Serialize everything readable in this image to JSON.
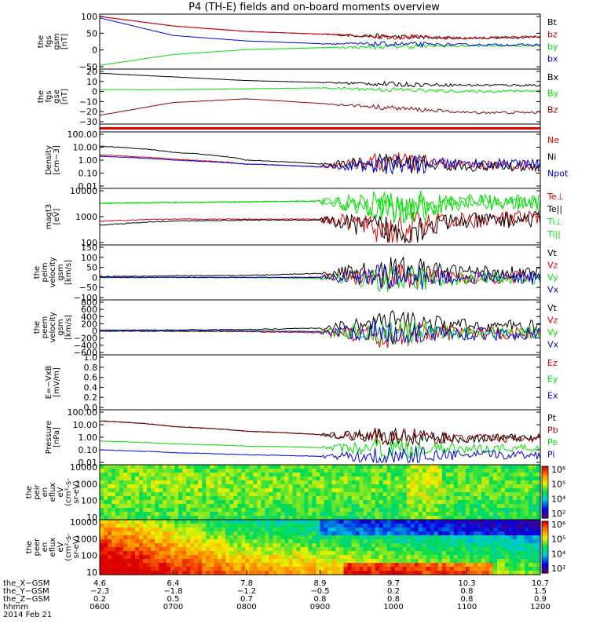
{
  "title": "P4 (TH-E) fields and on-board moments overview",
  "colors": {
    "black": "#000000",
    "red": "#e00000",
    "darkred": "#8b0000",
    "blue": "#0000e0",
    "green": "#00e000"
  },
  "panels": [
    {
      "id": "fgs-gsm",
      "ylabel": [
        "the",
        "fgs",
        "gsm",
        "[nT]"
      ],
      "yticks": [
        "100",
        "50",
        "0",
        "−50"
      ],
      "legend": [
        {
          "text": "Bt",
          "color": "#000000"
        },
        {
          "text": "bz",
          "color": "#e00000"
        },
        {
          "text": "by",
          "color": "#00e000"
        },
        {
          "text": "bx",
          "color": "#0000e0"
        }
      ]
    },
    {
      "id": "fgs-gse",
      "ylabel": [
        "the",
        "fgs",
        "gse",
        "[nT]"
      ],
      "yticks": [
        "20",
        "10",
        "0",
        "−10",
        "−20",
        "−30"
      ],
      "legend": [
        {
          "text": "Bx",
          "color": "#000000"
        },
        {
          "text": "By",
          "color": "#00e000"
        },
        {
          "text": "Bz",
          "color": "#8b0000"
        }
      ]
    },
    {
      "id": "density",
      "ylabel": [
        "Density",
        "[cm−3]"
      ],
      "yticks": [
        "100.00",
        "10.00",
        "1.00",
        "0.10",
        "0.01"
      ],
      "legend": [
        {
          "text": "Ne",
          "color": "#e00000"
        },
        {
          "text": "Ni",
          "color": "#000000"
        },
        {
          "text": "Npot",
          "color": "#0000e0"
        }
      ]
    },
    {
      "id": "temperature",
      "ylabel": [
        "magt3",
        "[eV]"
      ],
      "yticks": [
        "10000",
        "1000",
        "100"
      ],
      "legend": [
        {
          "text": "Te⊥",
          "color": "#e00000"
        },
        {
          "text": "Te||",
          "color": "#000000"
        },
        {
          "text": "Ti⊥",
          "color": "#00e000"
        },
        {
          "text": "Ti||",
          "color": "#00e000"
        }
      ]
    },
    {
      "id": "peim-velocity",
      "ylabel": [
        "the",
        "peim",
        "velocity",
        "gsm",
        "[km/s]"
      ],
      "yticks": [
        "150",
        "100",
        "50",
        "0",
        "−50",
        "−100"
      ],
      "legend": [
        {
          "text": "Vt",
          "color": "#000000"
        },
        {
          "text": "Vz",
          "color": "#e00000"
        },
        {
          "text": "Vy",
          "color": "#00e000"
        },
        {
          "text": "Vx",
          "color": "#0000e0"
        }
      ]
    },
    {
      "id": "peem-velocity",
      "ylabel": [
        "the",
        "peem",
        "velocity",
        "gsm",
        "[km/s]"
      ],
      "yticks": [
        "800",
        "600",
        "400",
        "200",
        "0",
        "−200",
        "−400",
        "−600"
      ],
      "legend": [
        {
          "text": "Vt",
          "color": "#000000"
        },
        {
          "text": "Vz",
          "color": "#e00000"
        },
        {
          "text": "Vy",
          "color": "#00e000"
        },
        {
          "text": "Vx",
          "color": "#0000e0"
        }
      ]
    },
    {
      "id": "efield",
      "ylabel": [
        "E=−VxB",
        "[mV/m]"
      ],
      "yticks": [
        "1.0",
        "0.8",
        "0.6",
        "0.4",
        "0.2",
        "0.0"
      ],
      "legend": [
        {
          "text": "Ez",
          "color": "#e00000"
        },
        {
          "text": "Ey",
          "color": "#00e000"
        },
        {
          "text": "Ex",
          "color": "#0000e0"
        }
      ]
    },
    {
      "id": "pressure",
      "ylabel": [
        "Pressure",
        "[nPa]"
      ],
      "yticks": [
        "100.00",
        "10.00",
        "1.00",
        "0.10",
        "0.01"
      ],
      "legend": [
        {
          "text": "Pt",
          "color": "#000000"
        },
        {
          "text": "Pb",
          "color": "#8b0000"
        },
        {
          "text": "Pe",
          "color": "#00e000"
        },
        {
          "text": "Pi",
          "color": "#0000e0"
        }
      ]
    },
    {
      "id": "peir-spectrogram",
      "ylabel": [
        "the",
        "peir",
        "en",
        "eflux",
        "eV",
        "(cm²-s-",
        "sr-eV)"
      ],
      "yticks": [
        "10000",
        "1000",
        "100",
        "10"
      ],
      "legend": []
    },
    {
      "id": "peer-spectrogram",
      "ylabel": [
        "the",
        "peer",
        "en",
        "eflux",
        "eV",
        "(cm²-s-",
        "sr-eV)"
      ],
      "yticks": [
        "10000",
        "1000",
        "100",
        "10"
      ],
      "legend": []
    }
  ],
  "colorbar": {
    "labels_top": [
      "10⁶",
      "10⁵",
      "10⁴",
      "10²"
    ],
    "labels_bottom": [
      "10⁶",
      "10⁵",
      "10⁴",
      "10²"
    ],
    "exponents": [
      6,
      5,
      4,
      2
    ]
  },
  "xaxis": {
    "rows": [
      {
        "label": "the_X−GSM",
        "values": [
          "4.6",
          "6.4",
          "7.8",
          "8.9",
          "9.7",
          "10.3",
          "10.7"
        ]
      },
      {
        "label": "the_Y−GSM",
        "values": [
          "−2.3",
          "−1.8",
          "−1.2",
          "−0.5",
          "0.2",
          "0.8",
          "1.5"
        ]
      },
      {
        "label": "the_Z−GSM",
        "values": [
          "0.2",
          "0.5",
          "0.7",
          "0.8",
          "0.8",
          "0.8",
          "0.9"
        ]
      },
      {
        "label": "hhmm",
        "values": [
          "0600",
          "0700",
          "0800",
          "0900",
          "1000",
          "1100",
          "1200"
        ]
      }
    ],
    "date": "2014 Feb 21"
  },
  "chart_data": {
    "type": "line",
    "title": "P4 (TH-E) fields and on-board moments overview",
    "time_range_hhmm": [
      "0600",
      "1200"
    ],
    "panels": [
      {
        "name": "fgs gsm",
        "unit": "nT",
        "ylim": [
          -75,
          110
        ],
        "series": [
          {
            "name": "Bt",
            "values": [
              110,
              75,
              55,
              45,
              35,
              30,
              35
            ]
          },
          {
            "name": "bz",
            "values": [
              110,
              75,
              55,
              45,
              35,
              30,
              35
            ]
          },
          {
            "name": "by",
            "values": [
              -70,
              -30,
              -12,
              -5,
              0,
              2,
              3
            ]
          },
          {
            "name": "bx",
            "values": [
              105,
              40,
              20,
              10,
              8,
              6,
              5
            ]
          }
        ]
      },
      {
        "name": "fgs gse",
        "unit": "nT",
        "ylim": [
          -35,
          20
        ],
        "series": [
          {
            "name": "Bx",
            "values": [
              18,
              14,
              10,
              8,
              6,
              5,
              5
            ]
          },
          {
            "name": "By",
            "values": [
              0,
              0,
              1,
              2,
              0,
              -2,
              -1
            ]
          },
          {
            "name": "Bz",
            "values": [
              -28,
              -14,
              -10,
              -15,
              -20,
              -25,
              -25
            ]
          }
        ]
      },
      {
        "name": "Density",
        "unit": "cm-3",
        "scale": "log",
        "ylim": [
          0.01,
          100
        ],
        "series": [
          {
            "name": "Ne",
            "values": [
              2.5,
              1.2,
              0.5,
              0.3,
              0.8,
              0.4,
              0.4
            ]
          },
          {
            "name": "Ni",
            "values": [
              12,
              4,
              1.0,
              0.5,
              0.6,
              0.3,
              0.3
            ]
          },
          {
            "name": "Npot",
            "values": [
              2,
              1,
              0.5,
              0.3,
              0.4,
              0.6,
              0.5
            ]
          }
        ]
      },
      {
        "name": "magt3",
        "unit": "eV",
        "scale": "log",
        "ylim": [
          50,
          10000
        ],
        "series": [
          {
            "name": "Te⊥",
            "values": [
              450,
              550,
              550,
              550,
              150,
              500,
              600
            ]
          },
          {
            "name": "Te||",
            "values": [
              300,
              450,
              500,
              500,
              130,
              450,
              550
            ]
          },
          {
            "name": "Ti⊥",
            "values": [
              2800,
              3000,
              3200,
              3500,
              1500,
              3000,
              3000
            ]
          },
          {
            "name": "Ti||",
            "values": [
              2800,
              3000,
              3200,
              3500,
              1500,
              3000,
              3000
            ]
          }
        ]
      },
      {
        "name": "peim velocity gsm",
        "unit": "km/s",
        "ylim": [
          -100,
          150
        ],
        "series": [
          {
            "name": "Vt",
            "values": [
              5,
              8,
              10,
              20,
              40,
              30,
              25
            ]
          },
          {
            "name": "Vz",
            "values": [
              0,
              0,
              0,
              0,
              5,
              0,
              0
            ]
          },
          {
            "name": "Vy",
            "values": [
              0,
              0,
              0,
              -5,
              -10,
              -5,
              -5
            ]
          },
          {
            "name": "Vx",
            "values": [
              0,
              0,
              0,
              0,
              0,
              0,
              0
            ]
          }
        ]
      },
      {
        "name": "peem velocity gsm",
        "unit": "km/s",
        "ylim": [
          -600,
          800
        ],
        "series": [
          {
            "name": "Vt",
            "values": [
              20,
              30,
              40,
              80,
              250,
              150,
              120
            ]
          },
          {
            "name": "Vz",
            "values": [
              -10,
              -10,
              -20,
              -50,
              -120,
              -60,
              -60
            ]
          },
          {
            "name": "Vy",
            "values": [
              0,
              0,
              0,
              -20,
              -50,
              -40,
              -40
            ]
          },
          {
            "name": "Vx",
            "values": [
              0,
              0,
              0,
              -20,
              -30,
              -80,
              -80
            ]
          }
        ]
      },
      {
        "name": "E=-VxB",
        "unit": "mV/m",
        "ylim": [
          0,
          1
        ],
        "series": []
      },
      {
        "name": "Pressure",
        "unit": "nPa",
        "scale": "log",
        "ylim": [
          0.01,
          100
        ],
        "series": [
          {
            "name": "Pt",
            "values": [
              20,
              7,
              3,
              1.6,
              1.0,
              0.8,
              0.9
            ]
          },
          {
            "name": "Pb",
            "values": [
              20,
              7,
              3,
              1.6,
              1.0,
              0.8,
              0.9
            ]
          },
          {
            "name": "Pe",
            "values": [
              0.5,
              0.3,
              0.2,
              0.15,
              0.12,
              0.12,
              0.15
            ]
          },
          {
            "name": "Pi",
            "values": [
              0.1,
              0.06,
              0.04,
              0.03,
              0.03,
              0.04,
              0.04
            ]
          }
        ]
      }
    ]
  }
}
